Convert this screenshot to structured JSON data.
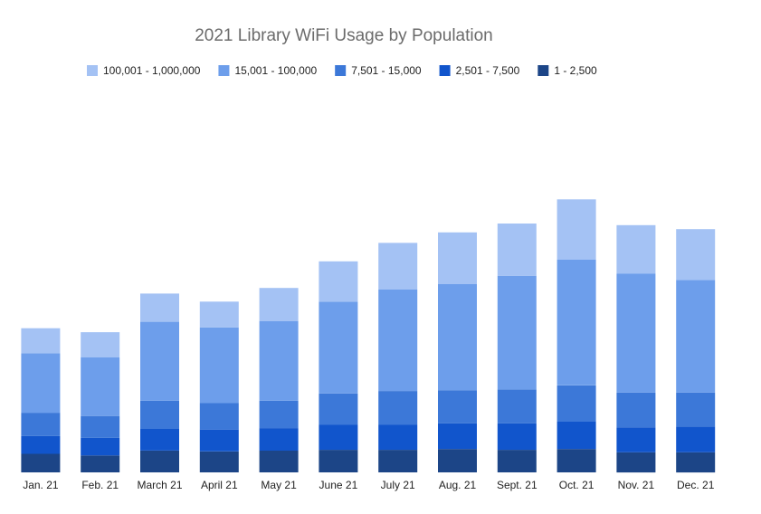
{
  "chart_data": {
    "type": "bar",
    "stacked": true,
    "title": "2021 Library WiFi Usage by Population",
    "xlabel": "",
    "ylabel": "",
    "legend_position": "top",
    "grid": false,
    "y_axis_visible": false,
    "ylim": [
      0,
      380
    ],
    "categories": [
      "Jan. 21",
      "Feb. 21",
      "March 21",
      "April 21",
      "May 21",
      "June 21",
      "July 21",
      "Aug. 21",
      "Sept. 21",
      "Oct. 21",
      "Nov. 21",
      "Dec. 21"
    ],
    "series": [
      {
        "name": "1 - 2,500",
        "color": "#1c4587",
        "values": [
          23,
          21,
          27,
          26,
          27,
          28,
          28,
          29,
          28,
          29,
          25,
          25
        ]
      },
      {
        "name": "2,501 - 7,500",
        "color": "#1155cc",
        "values": [
          22,
          22,
          27,
          27,
          28,
          31,
          31,
          32,
          33,
          34,
          31,
          32
        ]
      },
      {
        "name": "7,501 - 15,000",
        "color": "#3c78d8",
        "values": [
          29,
          27,
          35,
          33,
          34,
          39,
          42,
          41,
          42,
          45,
          43,
          42
        ]
      },
      {
        "name": "15,001 - 100,000",
        "color": "#6d9eeb",
        "values": [
          74,
          73,
          98,
          94,
          99,
          114,
          126,
          132,
          141,
          156,
          148,
          140
        ]
      },
      {
        "name": "100,001 - 1,000,000",
        "color": "#a4c2f4",
        "values": [
          31,
          31,
          35,
          32,
          41,
          50,
          58,
          64,
          65,
          75,
          60,
          63
        ]
      }
    ],
    "legend_order": [
      "100,001 - 1,000,000",
      "15,001 - 100,000",
      "7,501 - 15,000",
      "2,501 - 7,500",
      "1 - 2,500"
    ]
  }
}
